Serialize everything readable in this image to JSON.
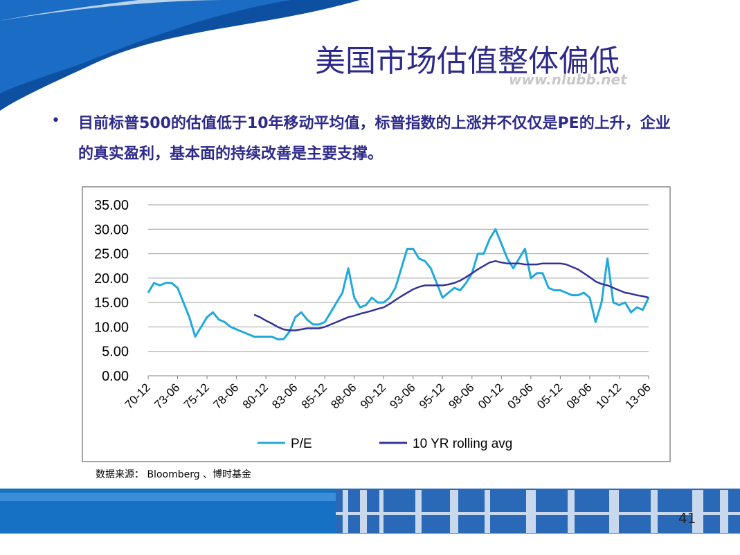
{
  "slide": {
    "title": "美国市场估值整体偏低",
    "watermark": "www.nlubb.net",
    "bullet": "目前标普500的估值低于10年移动平均值，标普指数的上涨并不仅仅是PE的上升，企业的真实盈利，基本面的持续改善是主要支撑。",
    "source": "数据来源： Bloomberg 、博时基金",
    "page_number": "41"
  },
  "chart_data": {
    "type": "line",
    "categories": [
      "70-12",
      null,
      null,
      null,
      null,
      "73-06",
      null,
      null,
      null,
      null,
      "75-12",
      null,
      null,
      null,
      null,
      "78-06",
      null,
      null,
      null,
      null,
      "80-12",
      null,
      null,
      null,
      null,
      "83-06",
      null,
      null,
      null,
      null,
      "85-12",
      null,
      null,
      null,
      null,
      "88-06",
      null,
      null,
      null,
      null,
      "90-12",
      null,
      null,
      null,
      null,
      "93-06",
      null,
      null,
      null,
      null,
      "95-12",
      null,
      null,
      null,
      null,
      "98-06",
      null,
      null,
      null,
      null,
      "00-12",
      null,
      null,
      null,
      null,
      "03-06",
      null,
      null,
      null,
      null,
      "05-12",
      null,
      null,
      null,
      null,
      "08-06",
      null,
      null,
      null,
      null,
      "10-12",
      null,
      null,
      null,
      null,
      "13-06"
    ],
    "series": [
      {
        "name": "P/E",
        "color": "#1fa9dc",
        "values": [
          17,
          19,
          18.5,
          19,
          19,
          18,
          15,
          12,
          8,
          10,
          12,
          13,
          11.5,
          11,
          10,
          9.5,
          9,
          8.5,
          8,
          8,
          8,
          8,
          7.5,
          7.5,
          9,
          12,
          13,
          11.5,
          10.5,
          10.5,
          11,
          13,
          15,
          17,
          22,
          16,
          14,
          14.5,
          16,
          15,
          15,
          16,
          18,
          22,
          26,
          26,
          24,
          23.5,
          22,
          19,
          16,
          17,
          18,
          17.5,
          19,
          21,
          25,
          25,
          28,
          30,
          27,
          24,
          22,
          24,
          26,
          20,
          21,
          21,
          18,
          17.5,
          17.5,
          17,
          16.5,
          16.5,
          17,
          16,
          11,
          15,
          24,
          15,
          14.5,
          15,
          13,
          14,
          13.5,
          16
        ]
      },
      {
        "name": "10 YR rolling avg",
        "color": "#33329a",
        "values": [
          null,
          null,
          null,
          null,
          null,
          null,
          null,
          null,
          null,
          null,
          null,
          null,
          null,
          null,
          null,
          null,
          null,
          null,
          12.5,
          12,
          11.3,
          10.7,
          10,
          9.5,
          9.3,
          9.3,
          9.5,
          9.7,
          9.7,
          9.7,
          10,
          10.5,
          11,
          11.5,
          12,
          12.3,
          12.7,
          13,
          13.3,
          13.7,
          14,
          14.7,
          15.5,
          16.3,
          17,
          17.7,
          18.2,
          18.5,
          18.5,
          18.5,
          18.5,
          18.7,
          19,
          19.5,
          20.2,
          21,
          21.8,
          22.5,
          23.2,
          23.5,
          23.2,
          23,
          23,
          23,
          22.8,
          22.8,
          22.8,
          23,
          23,
          23,
          23,
          22.8,
          22.3,
          21.8,
          21,
          20.2,
          19.3,
          18.8,
          18.5,
          18,
          17.5,
          17,
          16.8,
          16.5,
          16.3,
          16
        ]
      }
    ],
    "ylim": [
      0,
      35
    ],
    "yticks": [
      {
        "value": 0,
        "label": "0.00"
      },
      {
        "value": 5,
        "label": "5.00"
      },
      {
        "value": 10,
        "label": "10.00"
      },
      {
        "value": 15,
        "label": "15.00"
      },
      {
        "value": 20,
        "label": "20.00"
      },
      {
        "value": 25,
        "label": "25.00"
      },
      {
        "value": 30,
        "label": "30.00"
      },
      {
        "value": 35,
        "label": "35.00"
      }
    ],
    "grid": true,
    "legend": "bottom"
  }
}
